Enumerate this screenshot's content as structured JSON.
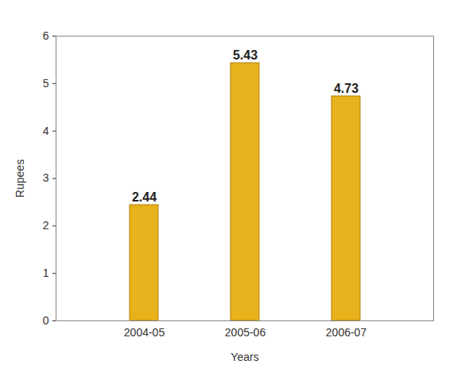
{
  "chart_data": {
    "type": "bar",
    "categories": [
      "2004-05",
      "2005-06",
      "2006-07"
    ],
    "values": [
      2.44,
      5.43,
      4.73
    ],
    "color": "#e8b21c",
    "x_label": "Years",
    "y_label": "Rupees",
    "ylim": [
      0,
      6
    ],
    "yticks": [
      0,
      1,
      2,
      3,
      4,
      5,
      6
    ],
    "grid": false,
    "data_labels": true
  }
}
